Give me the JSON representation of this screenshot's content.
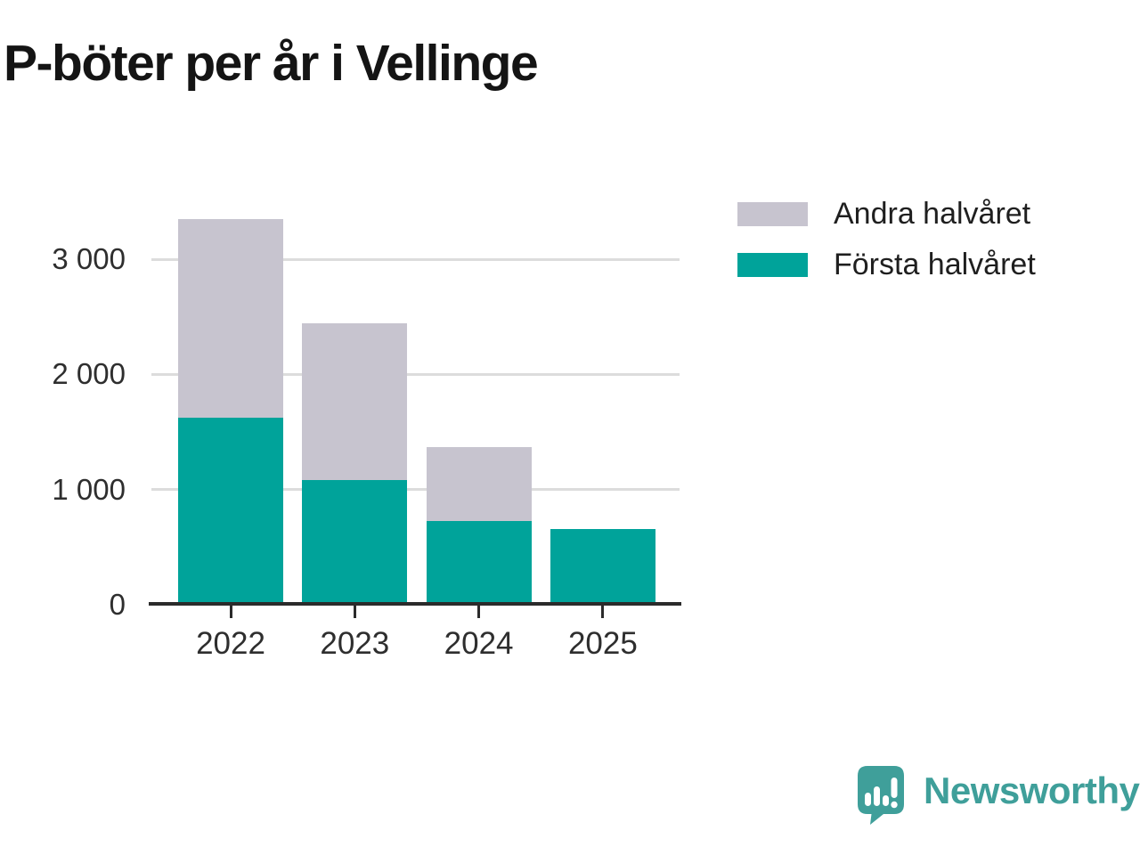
{
  "title": "P-böter per år i Vellinge",
  "legend": {
    "items": [
      {
        "label": "Andra halvåret",
        "color": "#c7c4cf"
      },
      {
        "label": "Första halvåret",
        "color": "#00a39a"
      }
    ]
  },
  "chart_data": {
    "type": "bar",
    "stacked": true,
    "title": "P-böter per år i Vellinge",
    "categories": [
      "2022",
      "2023",
      "2024",
      "2025"
    ],
    "series": [
      {
        "name": "Första halvåret",
        "color": "#00a39a",
        "values": [
          1620,
          1080,
          730,
          655
        ]
      },
      {
        "name": "Andra halvåret",
        "color": "#c7c4cf",
        "values": [
          1730,
          1360,
          640,
          0
        ]
      }
    ],
    "totals": [
      3350,
      2440,
      1370,
      655
    ],
    "xlabel": "",
    "ylabel": "",
    "ytick_values": [
      0,
      1000,
      2000,
      3000
    ],
    "ytick_labels": [
      "0",
      "1 000",
      "2 000",
      "3 000"
    ],
    "ylim": [
      0,
      3470
    ],
    "grid": "horizontal",
    "gridline_color": "#dcdcdc",
    "axis_color": "#2b2b2b",
    "legend_position": "top-right"
  },
  "branding": {
    "logo_text": "Newsworthy",
    "logo_icon": "newsworthy-speech-bubble-chart-icon",
    "color": "#3f9f9a"
  }
}
